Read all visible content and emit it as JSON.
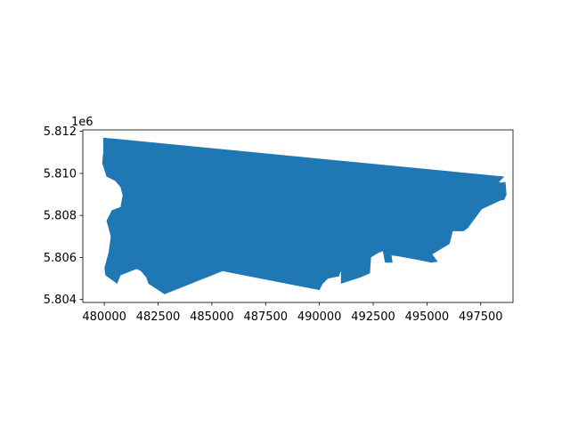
{
  "chart_data": {
    "type": "area",
    "title": "",
    "xlabel": "",
    "ylabel": "",
    "grid": false,
    "xlim": [
      479000,
      499000
    ],
    "ylim": [
      5.80386,
      5.81207
    ],
    "y_offset_text": "1e6",
    "x_ticks": [
      {
        "value": 480000,
        "label": "480000"
      },
      {
        "value": 482500,
        "label": "482500"
      },
      {
        "value": 485000,
        "label": "485000"
      },
      {
        "value": 487500,
        "label": "487500"
      },
      {
        "value": 490000,
        "label": "490000"
      },
      {
        "value": 492500,
        "label": "492500"
      },
      {
        "value": 495000,
        "label": "495000"
      },
      {
        "value": 497500,
        "label": "497500"
      }
    ],
    "y_ticks": [
      {
        "value": 5.804,
        "label": "5.804"
      },
      {
        "value": 5.806,
        "label": "5.806"
      },
      {
        "value": 5.808,
        "label": "5.808"
      },
      {
        "value": 5.81,
        "label": "5.810"
      },
      {
        "value": 5.812,
        "label": "5.812"
      }
    ],
    "fill_color": "#1f77b4",
    "polygon": [
      [
        479950,
        5.8117
      ],
      [
        498600,
        5.80985
      ],
      [
        498350,
        5.8096
      ],
      [
        498450,
        5.80955
      ],
      [
        498650,
        5.8096
      ],
      [
        498700,
        5.809
      ],
      [
        498600,
        5.80875
      ],
      [
        498400,
        5.8087
      ],
      [
        497550,
        5.8083
      ],
      [
        496900,
        5.8074
      ],
      [
        496700,
        5.80725
      ],
      [
        496200,
        5.80725
      ],
      [
        496050,
        5.80665
      ],
      [
        495250,
        5.80615
      ],
      [
        495500,
        5.8058
      ],
      [
        495200,
        5.80575
      ],
      [
        494500,
        5.8059
      ],
      [
        493700,
        5.80605
      ],
      [
        493350,
        5.8061
      ],
      [
        493400,
        5.80575
      ],
      [
        493050,
        5.80575
      ],
      [
        492950,
        5.8063
      ],
      [
        492700,
        5.8062
      ],
      [
        492400,
        5.806
      ],
      [
        492350,
        5.80525
      ],
      [
        491900,
        5.80505
      ],
      [
        491000,
        5.80475
      ],
      [
        491000,
        5.80535
      ],
      [
        490900,
        5.8051
      ],
      [
        490400,
        5.805
      ],
      [
        490150,
        5.80475
      ],
      [
        490000,
        5.80445
      ],
      [
        485500,
        5.80535
      ],
      [
        482800,
        5.80425
      ],
      [
        482050,
        5.80475
      ],
      [
        481950,
        5.80505
      ],
      [
        481700,
        5.80535
      ],
      [
        481500,
        5.80545
      ],
      [
        480750,
        5.80515
      ],
      [
        480600,
        5.80475
      ],
      [
        480050,
        5.80515
      ],
      [
        480000,
        5.8055
      ],
      [
        480200,
        5.80625
      ],
      [
        480300,
        5.807
      ],
      [
        480100,
        5.80775
      ],
      [
        480350,
        5.80825
      ],
      [
        480750,
        5.8084
      ],
      [
        480850,
        5.80895
      ],
      [
        480750,
        5.80935
      ],
      [
        480500,
        5.80965
      ],
      [
        480100,
        5.80985
      ],
      [
        479900,
        5.8105
      ],
      [
        479950,
        5.811
      ]
    ]
  }
}
